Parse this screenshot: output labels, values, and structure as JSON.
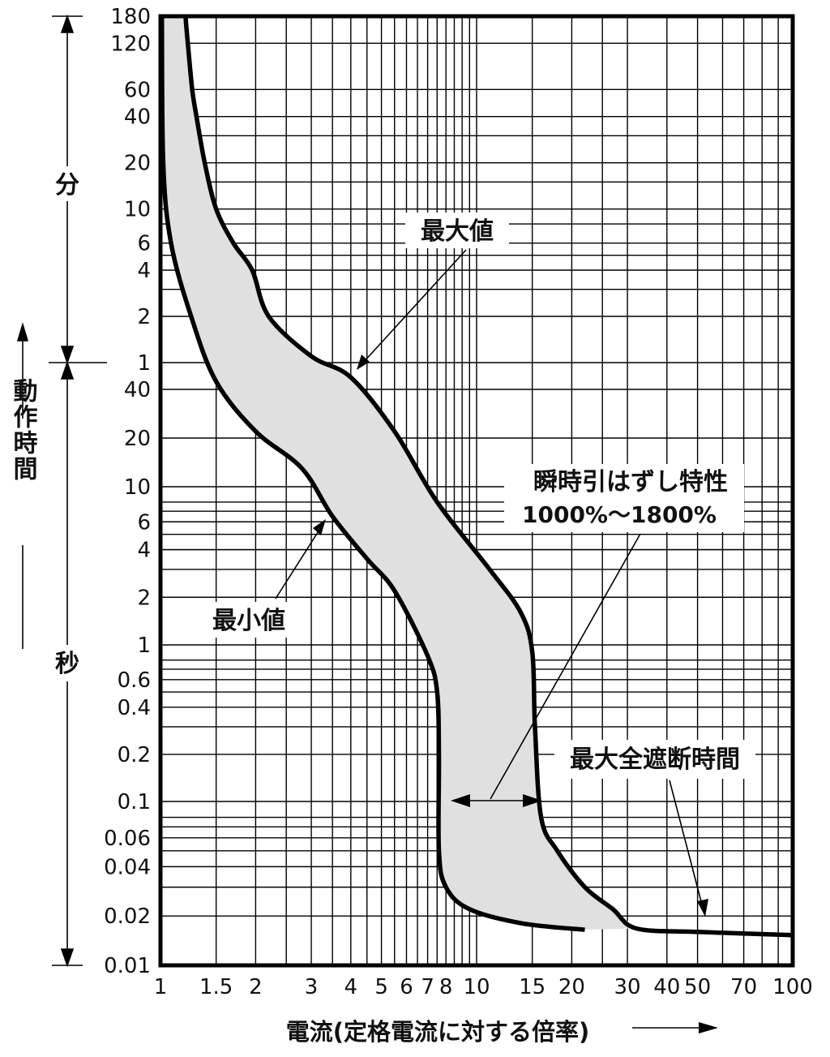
{
  "chart_data": {
    "type": "line",
    "title": "",
    "xlabel": "電流(定格電流に対する倍率)",
    "ylabel": "動作時間",
    "x_scale": "log",
    "xlim": [
      1,
      100
    ],
    "ylim_seconds": [
      0.01,
      10800
    ],
    "x_ticks": [
      1,
      1.5,
      2,
      3,
      4,
      5,
      6,
      7,
      8,
      10,
      15,
      20,
      30,
      40,
      50,
      70,
      100
    ],
    "x_tick_labels": [
      "1",
      "1.5",
      "2",
      "3",
      "4",
      "5",
      "6",
      "7",
      "8",
      "10",
      "15",
      "20",
      "30",
      "40",
      "50",
      "70",
      "100"
    ],
    "y_ticks_minutes": [
      {
        "label": "180",
        "seconds": 10800
      },
      {
        "label": "120",
        "seconds": 7200
      },
      {
        "label": "60",
        "seconds": 3600
      },
      {
        "label": "40",
        "seconds": 2400
      },
      {
        "label": "20",
        "seconds": 1200
      },
      {
        "label": "10",
        "seconds": 600
      },
      {
        "label": "6",
        "seconds": 360
      },
      {
        "label": "4",
        "seconds": 240
      },
      {
        "label": "2",
        "seconds": 120
      },
      {
        "label": "1",
        "seconds": 60
      }
    ],
    "y_ticks_seconds": [
      {
        "label": "40",
        "seconds": 40
      },
      {
        "label": "20",
        "seconds": 20
      },
      {
        "label": "10",
        "seconds": 10
      },
      {
        "label": "6",
        "seconds": 6
      },
      {
        "label": "4",
        "seconds": 4
      },
      {
        "label": "2",
        "seconds": 2
      },
      {
        "label": "1",
        "seconds": 1
      },
      {
        "label": "0.6",
        "seconds": 0.6
      },
      {
        "label": "0.4",
        "seconds": 0.4
      },
      {
        "label": "0.2",
        "seconds": 0.2
      },
      {
        "label": "0.1",
        "seconds": 0.1
      },
      {
        "label": "0.06",
        "seconds": 0.06
      },
      {
        "label": "0.04",
        "seconds": 0.04
      },
      {
        "label": "0.02",
        "seconds": 0.02
      },
      {
        "label": "0.01",
        "seconds": 0.01
      }
    ],
    "y_unit_minutes": "分",
    "y_unit_seconds": "秒",
    "series": [
      {
        "name": "最大値",
        "points": [
          [
            1.2,
            10800
          ],
          [
            1.22,
            7200
          ],
          [
            1.26,
            3600
          ],
          [
            1.3,
            2400
          ],
          [
            1.38,
            1200
          ],
          [
            1.5,
            600
          ],
          [
            1.7,
            360
          ],
          [
            1.95,
            240
          ],
          [
            2.2,
            120
          ],
          [
            3,
            66
          ],
          [
            4,
            48
          ],
          [
            5.5,
            22
          ],
          [
            7.5,
            8
          ],
          [
            11,
            3
          ],
          [
            13.8,
            1.6
          ],
          [
            15,
            0.9
          ],
          [
            15.3,
            0.3
          ],
          [
            16,
            0.08
          ],
          [
            18,
            0.05
          ],
          [
            22,
            0.03
          ],
          [
            27,
            0.022
          ],
          [
            32,
            0.0168
          ],
          [
            50,
            0.016
          ],
          [
            100,
            0.0153
          ]
        ]
      },
      {
        "name": "最小値",
        "points": [
          [
            1.01,
            10800
          ],
          [
            1.02,
            1200
          ],
          [
            1.08,
            360
          ],
          [
            1.25,
            120
          ],
          [
            1.5,
            45
          ],
          [
            2,
            22
          ],
          [
            2.8,
            13
          ],
          [
            3.5,
            6.5
          ],
          [
            4.5,
            3.5
          ],
          [
            5.5,
            2.2
          ],
          [
            7,
            0.85
          ],
          [
            7.5,
            0.5
          ],
          [
            7.6,
            0.2
          ],
          [
            7.6,
            0.05
          ],
          [
            8,
            0.03
          ],
          [
            9.5,
            0.022
          ],
          [
            14,
            0.018
          ],
          [
            22,
            0.0165
          ]
        ]
      }
    ],
    "annotations": {
      "max_label": "最大値",
      "min_label": "最小値",
      "instant_trip_label": "瞬時引はずし特性",
      "instant_trip_range": "1000%〜1800%",
      "max_total_break_label": "最大全遮断時間"
    },
    "grid": true,
    "legend": "none"
  }
}
